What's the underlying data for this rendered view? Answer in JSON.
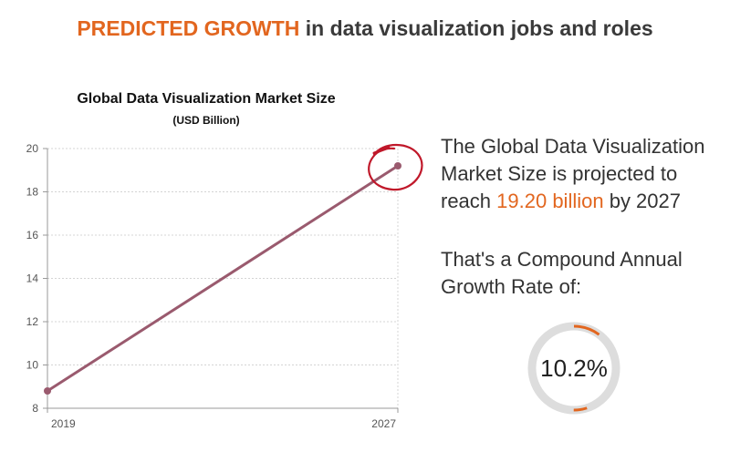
{
  "header": {
    "highlight": "PREDICTED GROWTH",
    "rest": " in data visualization jobs and roles"
  },
  "chart_data": {
    "type": "line",
    "title": "Global Data Visualization Market Size",
    "subtitle": "(USD Billion)",
    "xlabel": "",
    "ylabel": "",
    "categories": [
      "2019",
      "2027"
    ],
    "series": [
      {
        "values": [
          8.8,
          19.2
        ]
      }
    ],
    "ylim": [
      8,
      20
    ],
    "yticks": [
      8,
      10,
      12,
      14,
      16,
      18,
      20
    ],
    "grid": true,
    "annotation": "circle highlighting the 2027 value",
    "line_color": "#9a5a6e",
    "annotation_color": "#c0182a"
  },
  "info": {
    "line1": "The Global Data Visualization Market Size is projected to reach ",
    "value": "19.20 billion",
    "line2": " by 2027"
  },
  "cagr": {
    "label": "That's a Compound Annual Growth Rate of:",
    "value": "10.2%",
    "fraction": 0.102,
    "ring_color": "#dddddd",
    "accent_color": "#e2661f"
  }
}
